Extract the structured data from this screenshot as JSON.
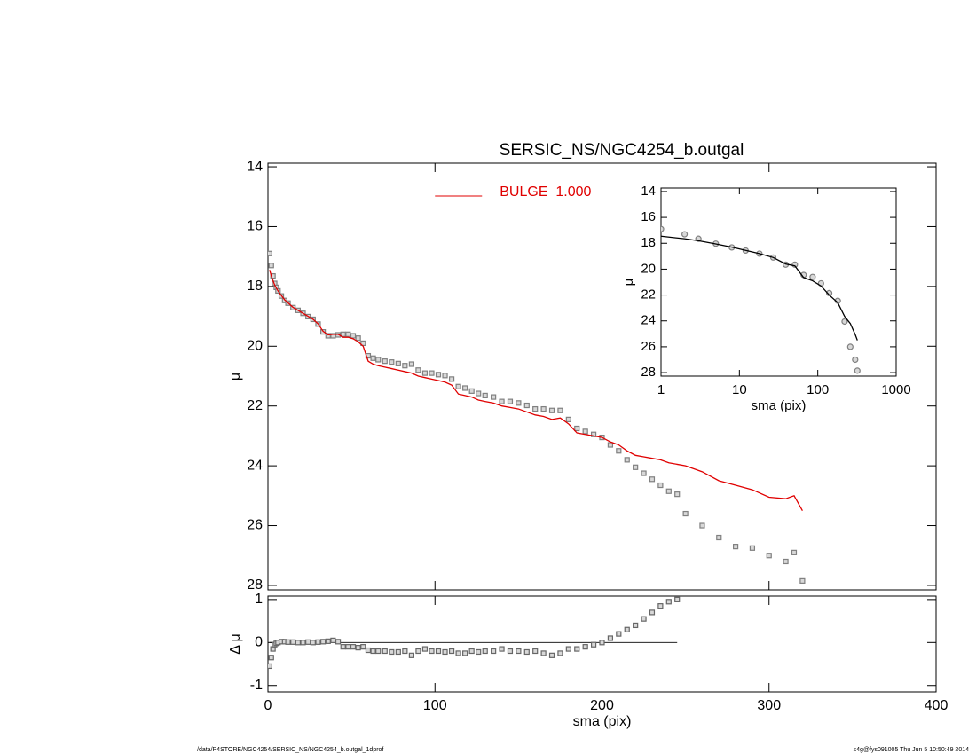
{
  "chart_data": [
    {
      "type": "scatter",
      "title": "SERSIC_NS/NGC4254_b.outgal",
      "ylabel": "μ",
      "xlim": [
        0,
        400
      ],
      "xticks": [
        0,
        100,
        200,
        300,
        400
      ],
      "xtick_labels": false,
      "ylim": [
        13.88,
        28.15
      ],
      "yticks": [
        14,
        16,
        18,
        20,
        22,
        24,
        26,
        28
      ],
      "y_inverted": true,
      "legend": "upper center",
      "x": [
        1,
        2,
        3,
        4,
        5,
        6,
        8,
        10,
        12,
        15,
        18,
        21,
        24,
        27,
        30,
        33,
        36,
        39,
        42,
        45,
        48,
        51,
        54,
        57,
        60,
        63,
        66,
        70,
        74,
        78,
        82,
        86,
        90,
        94,
        98,
        102,
        106,
        110,
        114,
        118,
        122,
        126,
        130,
        135,
        140,
        145,
        150,
        155,
        160,
        165,
        170,
        175,
        180,
        185,
        190,
        195,
        200,
        205,
        210,
        215,
        220,
        225,
        230,
        235,
        240,
        245,
        250,
        260,
        270,
        280,
        290,
        300,
        310,
        315,
        320
      ],
      "series": [
        {
          "color": "#808080",
          "mode": "squares",
          "values": [
            16.9,
            17.3,
            17.65,
            17.9,
            18.03,
            18.15,
            18.32,
            18.47,
            18.56,
            18.71,
            18.8,
            18.9,
            19.01,
            19.1,
            19.26,
            19.52,
            19.65,
            19.65,
            19.62,
            19.6,
            19.6,
            19.65,
            19.73,
            19.9,
            20.32,
            20.4,
            20.45,
            20.5,
            20.53,
            20.58,
            20.65,
            20.6,
            20.8,
            20.9,
            20.9,
            20.95,
            20.98,
            21.1,
            21.35,
            21.4,
            21.5,
            21.58,
            21.65,
            21.7,
            21.85,
            21.85,
            21.9,
            21.98,
            22.1,
            22.1,
            22.15,
            22.15,
            22.45,
            22.75,
            22.85,
            22.95,
            23.05,
            23.3,
            23.5,
            23.8,
            24.05,
            24.25,
            24.45,
            24.65,
            24.85,
            24.95,
            25.6,
            26.0,
            26.4,
            26.7,
            26.75,
            27.0,
            27.2,
            26.9,
            27.85
          ]
        },
        {
          "name": "BULGE  1.000",
          "color": "#e00000",
          "mode": "line",
          "values": [
            17.45,
            17.65,
            17.8,
            17.95,
            18.05,
            18.15,
            18.3,
            18.45,
            18.55,
            18.7,
            18.8,
            18.9,
            19.0,
            19.1,
            19.25,
            19.5,
            19.62,
            19.6,
            19.6,
            19.7,
            19.7,
            19.75,
            19.85,
            20.0,
            20.5,
            20.6,
            20.65,
            20.7,
            20.75,
            20.8,
            20.85,
            20.9,
            21.0,
            21.05,
            21.1,
            21.15,
            21.2,
            21.3,
            21.6,
            21.65,
            21.7,
            21.8,
            21.85,
            21.9,
            22.0,
            22.05,
            22.1,
            22.2,
            22.3,
            22.35,
            22.45,
            22.4,
            22.6,
            22.9,
            22.95,
            23.0,
            23.05,
            23.2,
            23.3,
            23.5,
            23.65,
            23.7,
            23.75,
            23.8,
            23.9,
            23.95,
            24.0,
            24.2,
            24.5,
            24.65,
            24.8,
            25.05,
            25.1,
            25.0,
            25.5
          ]
        }
      ]
    },
    {
      "type": "scatter",
      "xlabel": "sma (pix)",
      "ylabel": "Δ μ",
      "xlim": [
        0,
        400
      ],
      "xticks": [
        0,
        100,
        200,
        300,
        400
      ],
      "ylim": [
        -1.15,
        1.08
      ],
      "yticks": [
        -1,
        0,
        1
      ],
      "hline": 0,
      "x": [
        1,
        2,
        3,
        4,
        5,
        6,
        8,
        10,
        12,
        15,
        18,
        21,
        24,
        27,
        30,
        33,
        36,
        39,
        42,
        45,
        48,
        51,
        54,
        57,
        60,
        63,
        66,
        70,
        74,
        78,
        82,
        86,
        90,
        94,
        98,
        102,
        106,
        110,
        114,
        118,
        122,
        126,
        130,
        135,
        140,
        145,
        150,
        155,
        160,
        165,
        170,
        175,
        180,
        185,
        190,
        195,
        200,
        205,
        210,
        215,
        220,
        225,
        230,
        235,
        240,
        245
      ],
      "series": [
        {
          "color": "#666666",
          "mode": "squares",
          "values": [
            -0.55,
            -0.35,
            -0.15,
            -0.05,
            -0.02,
            0,
            0.02,
            0.02,
            0.01,
            0.01,
            0,
            0,
            0.01,
            0,
            0.01,
            0.02,
            0.03,
            0.05,
            0.02,
            -0.1,
            -0.1,
            -0.1,
            -0.12,
            -0.1,
            -0.18,
            -0.2,
            -0.2,
            -0.2,
            -0.22,
            -0.22,
            -0.2,
            -0.3,
            -0.2,
            -0.15,
            -0.2,
            -0.2,
            -0.22,
            -0.2,
            -0.25,
            -0.25,
            -0.2,
            -0.22,
            -0.2,
            -0.2,
            -0.15,
            -0.2,
            -0.2,
            -0.22,
            -0.2,
            -0.25,
            -0.3,
            -0.25,
            -0.15,
            -0.15,
            -0.1,
            -0.05,
            0,
            0.1,
            0.2,
            0.3,
            0.4,
            0.55,
            0.7,
            0.85,
            0.95,
            1.0
          ]
        }
      ]
    },
    {
      "type": "scatter",
      "xlabel": "sma (pix)",
      "ylabel": "μ",
      "xscale": "log",
      "xlim": [
        1,
        1000
      ],
      "xticks": [
        1,
        10,
        100,
        1000
      ],
      "ylim": [
        13.73,
        28.27
      ],
      "yticks": [
        14,
        16,
        18,
        20,
        22,
        24,
        26,
        28
      ],
      "y_inverted": true,
      "x": [
        1,
        2,
        3,
        5,
        8,
        12,
        18,
        27,
        39,
        51,
        66,
        86,
        110,
        140,
        180,
        220,
        260,
        300,
        320
      ],
      "series": [
        {
          "color": "#808080",
          "mode": "circles",
          "values": [
            16.9,
            17.3,
            17.65,
            18.03,
            18.32,
            18.56,
            18.8,
            19.1,
            19.65,
            19.65,
            20.45,
            20.6,
            21.1,
            21.85,
            22.45,
            24.05,
            26.0,
            27.0,
            27.85
          ]
        },
        {
          "color": "#000000",
          "mode": "line",
          "values": [
            17.45,
            17.65,
            17.8,
            18.05,
            18.3,
            18.55,
            18.8,
            19.1,
            19.6,
            19.75,
            20.65,
            20.9,
            21.3,
            22.0,
            22.6,
            23.65,
            24.2,
            25.05,
            25.5
          ]
        }
      ]
    }
  ],
  "footer": {
    "left": "/data/P4STORE/NGC4254/SERSIC_NS/NGC4254_b.outgal_1dprof",
    "right": "s4g@fys091005  Thu Jun  5 10:50:49 2014"
  }
}
